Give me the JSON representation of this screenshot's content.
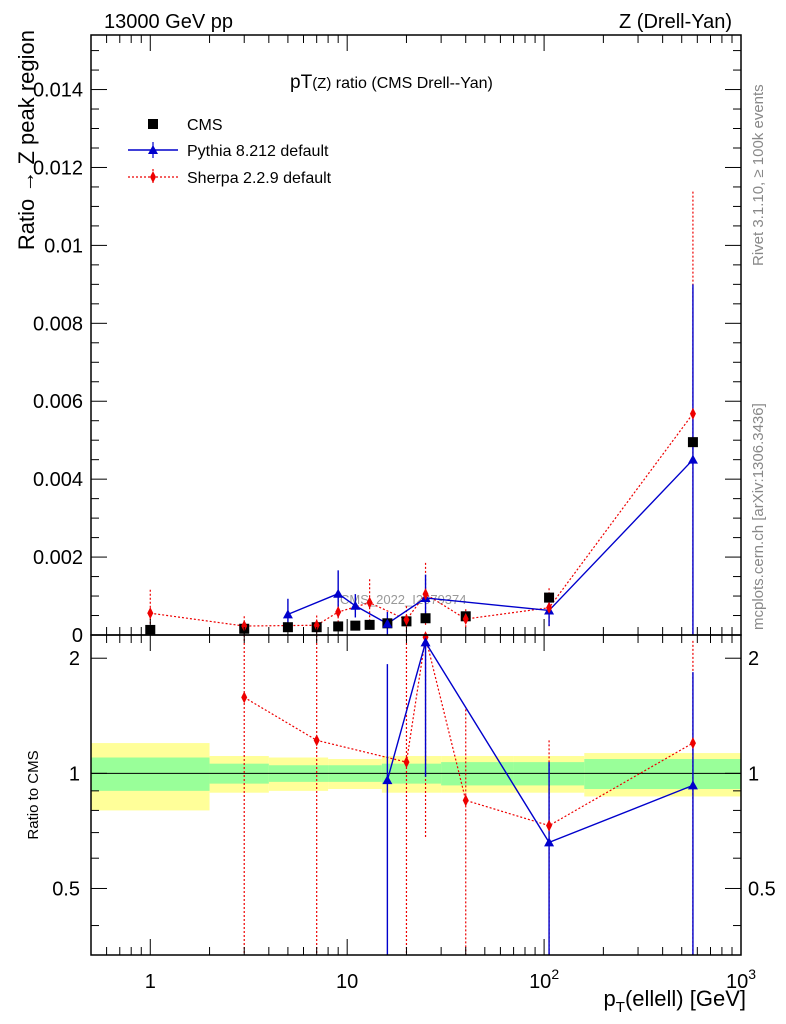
{
  "chart_data": {
    "type": "line",
    "header_left": "13000 GeV pp",
    "header_right": "Z (Drell-Yan)",
    "title": "pT(Z) ratio (CMS Drell--Yan)",
    "xlabel": "p_T(ellell) [GeV]",
    "ylabel": "Ratio → Z peak region",
    "ratio_ylabel": "Ratio to CMS",
    "side_label_1": "Rivet 3.1.10, ≥ 100k events",
    "side_label_2": "mcplots.cern.ch [arXiv:1306.3436]",
    "watermark": "CMS_2022_I2079374",
    "xscale": "log",
    "xlim": [
      0.5,
      1000
    ],
    "ylim": [
      0,
      0.0154
    ],
    "ratio_ylim": [
      0.335,
      2.3
    ],
    "main_yticks": [
      {
        "v": 0,
        "label": "0"
      },
      {
        "v": 0.002,
        "label": "0.002"
      },
      {
        "v": 0.004,
        "label": "0.004"
      },
      {
        "v": 0.006,
        "label": "0.006"
      },
      {
        "v": 0.008,
        "label": "0.008"
      },
      {
        "v": 0.01,
        "label": "0.01"
      },
      {
        "v": 0.012,
        "label": "0.012"
      },
      {
        "v": 0.014,
        "label": "0.014"
      }
    ],
    "ratio_yticks": [
      {
        "v": 0.5,
        "label": "0.5"
      },
      {
        "v": 1,
        "label": "1"
      },
      {
        "v": 2,
        "label": "2"
      }
    ],
    "xticks": [
      {
        "v": 1,
        "label": "1"
      },
      {
        "v": 10,
        "label": "10"
      },
      {
        "v": 100,
        "label": "10",
        "sup": "2"
      },
      {
        "v": 1000,
        "label": "10",
        "sup": "3"
      }
    ],
    "legend": [
      {
        "name": "CMS",
        "marker": "square",
        "color": "#000000"
      },
      {
        "name": "Pythia 8.212 default",
        "marker": "triangle",
        "color": "#0000cc"
      },
      {
        "name": "Sherpa 2.2.9 default",
        "marker": "diamond",
        "color": "#ee0000"
      }
    ],
    "data": {
      "x": [
        1,
        3,
        5,
        7,
        9,
        11,
        13,
        16,
        20,
        25,
        40,
        106,
        570
      ],
      "y": [
        0.00013,
        0.00016,
        0.0002,
        0.0002,
        0.00022,
        0.00024,
        0.00026,
        0.0003,
        0.00035,
        0.00043,
        0.00048,
        0.00096,
        0.00495
      ]
    },
    "pythia": {
      "x": [
        5,
        9,
        11,
        16,
        25,
        106,
        570
      ],
      "y": [
        0.00053,
        0.00106,
        0.00075,
        0.00029,
        0.00095,
        0.00063,
        0.0045
      ],
      "err": [
        0.0004,
        0.0006,
        0.0003,
        0.0003,
        0.0006,
        0.0004,
        0.0045
      ]
    },
    "sherpa": {
      "x": [
        1,
        3,
        7,
        9,
        13,
        20,
        25,
        40,
        106,
        570
      ],
      "y": [
        0.00056,
        0.00023,
        0.00025,
        0.00059,
        0.00083,
        0.00039,
        0.00105,
        0.00041,
        0.0007,
        0.00568
      ],
      "err": [
        0.0006,
        0.00025,
        0.00025,
        0.0004,
        0.0006,
        0.00035,
        0.0008,
        0.00025,
        0.0005,
        0.0057
      ]
    },
    "ratio_pythia": {
      "x": [
        16,
        25,
        106,
        570
      ],
      "y": [
        0.96,
        2.2,
        0.66,
        0.93
      ],
      "lo": [
        0.2,
        0.98,
        0.2,
        0.2
      ],
      "hi": [
        1.93,
        2.3,
        1.07,
        1.84
      ]
    },
    "ratio_sherpa": {
      "x": [
        3,
        7,
        20,
        25,
        40,
        106,
        570
      ],
      "y": [
        1.58,
        1.22,
        1.07,
        2.27,
        0.85,
        0.73,
        1.2
      ],
      "lo": [
        0.2,
        0.2,
        0.2,
        0.68,
        0.2,
        0.2,
        0.2
      ],
      "hi": [
        2.3,
        2.3,
        2.3,
        2.3,
        1.47,
        1.22,
        2.22
      ]
    },
    "bands": [
      {
        "x0": 0.5,
        "x1": 2,
        "g": 0.1,
        "y": 0.2
      },
      {
        "x0": 2,
        "x1": 4,
        "g": 0.06,
        "y": 0.11
      },
      {
        "x0": 4,
        "x1": 8,
        "g": 0.05,
        "y": 0.1
      },
      {
        "x0": 8,
        "x1": 15,
        "g": 0.05,
        "y": 0.09
      },
      {
        "x0": 15,
        "x1": 30,
        "g": 0.06,
        "y": 0.11
      },
      {
        "x0": 30,
        "x1": 70,
        "g": 0.07,
        "y": 0.11
      },
      {
        "x0": 70,
        "x1": 160,
        "g": 0.07,
        "y": 0.11
      },
      {
        "x0": 160,
        "x1": 1000,
        "g": 0.09,
        "y": 0.13
      }
    ],
    "colors": {
      "data": "#000000",
      "pythia": "#0000cc",
      "sherpa": "#ee0000",
      "band_inner": "#99ff99",
      "band_outer": "#ffff99"
    }
  }
}
